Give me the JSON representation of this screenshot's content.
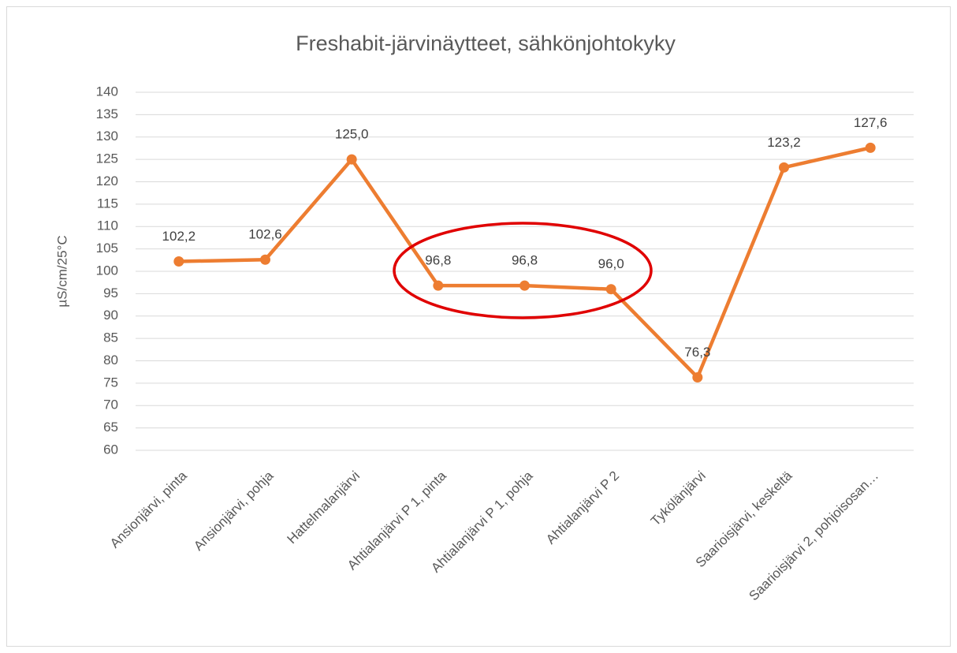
{
  "chart_data": {
    "type": "line",
    "title": "Freshabit-järvinäytteet, sähkönjohtokyky",
    "y_label": "µS/cm/25°C",
    "categories": [
      "Ansionjärvi, pinta",
      "Ansionjärvi, pohja",
      "Hattelmalanjärvi",
      "Ahtialanjärvi P 1, pinta",
      "Ahtialanjärvi P 1, pohja",
      "Ahtialanjärvi P 2",
      "Tykölänjärvi",
      "Saarioisjärvi, keskeltä",
      "Saarioisjärvi 2, pohjoisosan…"
    ],
    "values": [
      102.2,
      102.6,
      125.0,
      96.8,
      96.8,
      96.0,
      76.3,
      123.2,
      127.6
    ],
    "value_labels": [
      "102,2",
      "102,6",
      "125,0",
      "96,8",
      "96,8",
      "96,0",
      "76,3",
      "123,2",
      "127,6"
    ],
    "color": "#ed7d31",
    "ylim": [
      60,
      140
    ],
    "yticks": [
      60,
      65,
      70,
      75,
      80,
      85,
      90,
      95,
      100,
      105,
      110,
      115,
      120,
      125,
      130,
      135,
      140
    ],
    "grid": true
  }
}
